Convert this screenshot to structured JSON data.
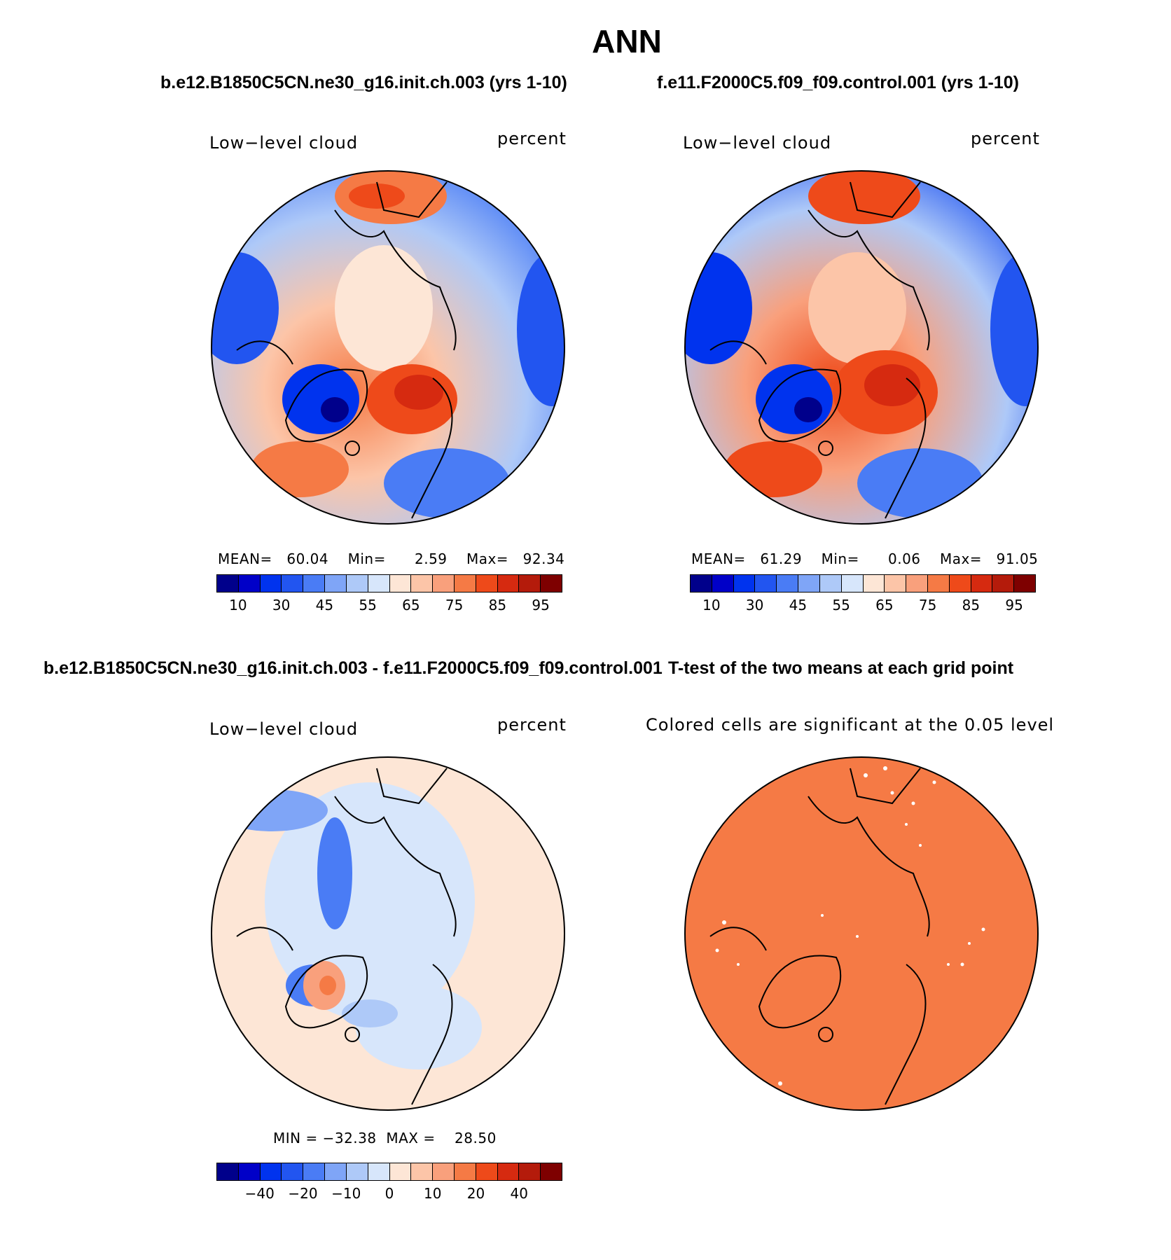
{
  "title": "ANN",
  "panels": {
    "top_left": {
      "case": "b.e12.B1850C5CN.ne30_g16.init.ch.003 (yrs 1-10)",
      "variable": "Low−level cloud",
      "units": "percent",
      "stats": {
        "mean_label": "MEAN=",
        "mean": "60.04",
        "min_label": "Min=",
        "min": "2.59",
        "max_label": "Max=",
        "max": "92.34"
      }
    },
    "top_right": {
      "case": "f.e11.F2000C5.f09_f09.control.001 (yrs 1-10)",
      "variable": "Low−level cloud",
      "units": "percent",
      "stats": {
        "mean_label": "MEAN=",
        "mean": "61.29",
        "min_label": "Min=",
        "min": "0.06",
        "max_label": "Max=",
        "max": "91.05"
      }
    },
    "bottom_left": {
      "case": "b.e12.B1850C5CN.ne30_g16.init.ch.003 - f.e11.F2000C5.f09_f09.control.001",
      "variable": "Low−level cloud",
      "units": "percent",
      "stats": {
        "min_label": "MIN =",
        "min": "−32.38",
        "max_label": "MAX =",
        "max": "28.50"
      }
    },
    "bottom_right": {
      "title": "T-test of the two means at each grid point",
      "subtitle": "Colored cells are significant at the 0.05 level",
      "fill_color": "#f57a45"
    }
  },
  "colorbars": {
    "absolute": {
      "colors": [
        "#00008b",
        "#0000c8",
        "#0033ee",
        "#2255f0",
        "#4a7cf5",
        "#7fa5f7",
        "#aec9f8",
        "#d7e6fb",
        "#fde6d6",
        "#fcc5a8",
        "#f9a07c",
        "#f57a45",
        "#ee4a1a",
        "#d62a10",
        "#b41b0b",
        "#7e0000"
      ],
      "ticks": [
        "10",
        "30",
        "45",
        "55",
        "65",
        "75",
        "85",
        "95"
      ],
      "tick_index": [
        1,
        3,
        5,
        7,
        9,
        11,
        13,
        15
      ]
    },
    "difference": {
      "colors": [
        "#00008b",
        "#0000c8",
        "#0033ee",
        "#2255f0",
        "#4a7cf5",
        "#7fa5f7",
        "#aec9f8",
        "#d7e6fb",
        "#fde6d6",
        "#fcc5a8",
        "#f9a07c",
        "#f57a45",
        "#ee4a1a",
        "#d62a10",
        "#b41b0b",
        "#7e0000"
      ],
      "ticks": [
        "−40",
        "−20",
        "−10",
        "0",
        "10",
        "20",
        "40"
      ],
      "tick_index": [
        2,
        4,
        6,
        8,
        10,
        12,
        14
      ]
    }
  }
}
